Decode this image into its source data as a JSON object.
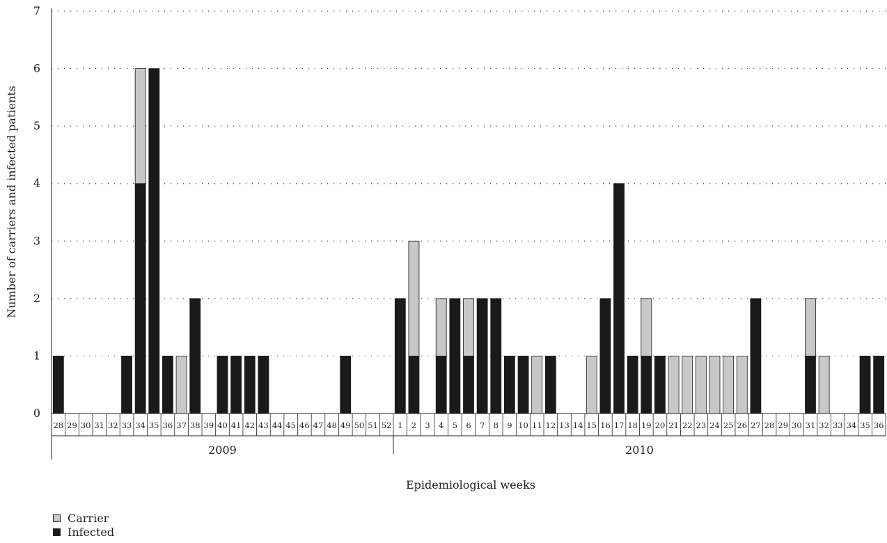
{
  "chart_data": {
    "type": "bar",
    "stacked": true,
    "xlabel": "Epidemiological weeks",
    "ylabel": "Number of carriers and infected patients",
    "ylim": [
      0,
      7
    ],
    "yticks": [
      0,
      1,
      2,
      3,
      4,
      5,
      6,
      7
    ],
    "grid": "horizontal dotted",
    "legend_placement": "bottom-left",
    "groups": [
      {
        "label": "2009",
        "start": 0,
        "count": 25
      },
      {
        "label": "2010",
        "start": 25,
        "count": 36
      }
    ],
    "categories": [
      "28",
      "29",
      "30",
      "31",
      "32",
      "33",
      "34",
      "35",
      "36",
      "37",
      "38",
      "39",
      "40",
      "41",
      "42",
      "43",
      "44",
      "45",
      "46",
      "47",
      "48",
      "49",
      "50",
      "51",
      "52",
      "1",
      "2",
      "3",
      "4",
      "5",
      "6",
      "7",
      "8",
      "9",
      "10",
      "11",
      "12",
      "13",
      "14",
      "15",
      "16",
      "17",
      "18",
      "19",
      "20",
      "21",
      "22",
      "23",
      "24",
      "25",
      "26",
      "27",
      "28",
      "29",
      "30",
      "31",
      "32",
      "33",
      "34",
      "35",
      "36"
    ],
    "series": [
      {
        "name": "Infected",
        "color": "#1a1a1a",
        "values": [
          1,
          0,
          0,
          0,
          0,
          1,
          4,
          6,
          1,
          0,
          2,
          0,
          1,
          1,
          1,
          1,
          0,
          0,
          0,
          0,
          0,
          1,
          0,
          0,
          0,
          2,
          1,
          0,
          1,
          2,
          1,
          2,
          2,
          1,
          1,
          0,
          1,
          0,
          0,
          0,
          2,
          4,
          1,
          1,
          1,
          0,
          0,
          0,
          0,
          0,
          0,
          2,
          0,
          0,
          0,
          1,
          0,
          0,
          0,
          1,
          1
        ]
      },
      {
        "name": "Carrier",
        "color": "#c8c8c8",
        "values": [
          0,
          0,
          0,
          0,
          0,
          0,
          2,
          0,
          0,
          1,
          0,
          0,
          0,
          0,
          0,
          0,
          0,
          0,
          0,
          0,
          0,
          0,
          0,
          0,
          0,
          0,
          2,
          0,
          1,
          0,
          1,
          0,
          0,
          0,
          0,
          1,
          0,
          0,
          0,
          1,
          0,
          0,
          0,
          1,
          0,
          1,
          1,
          1,
          1,
          1,
          1,
          0,
          0,
          0,
          0,
          1,
          1,
          0,
          0,
          0,
          0
        ]
      }
    ]
  },
  "legend": [
    {
      "label": "Carrier",
      "color": "#c8c8c8"
    },
    {
      "label": "Infected",
      "color": "#1a1a1a"
    }
  ]
}
